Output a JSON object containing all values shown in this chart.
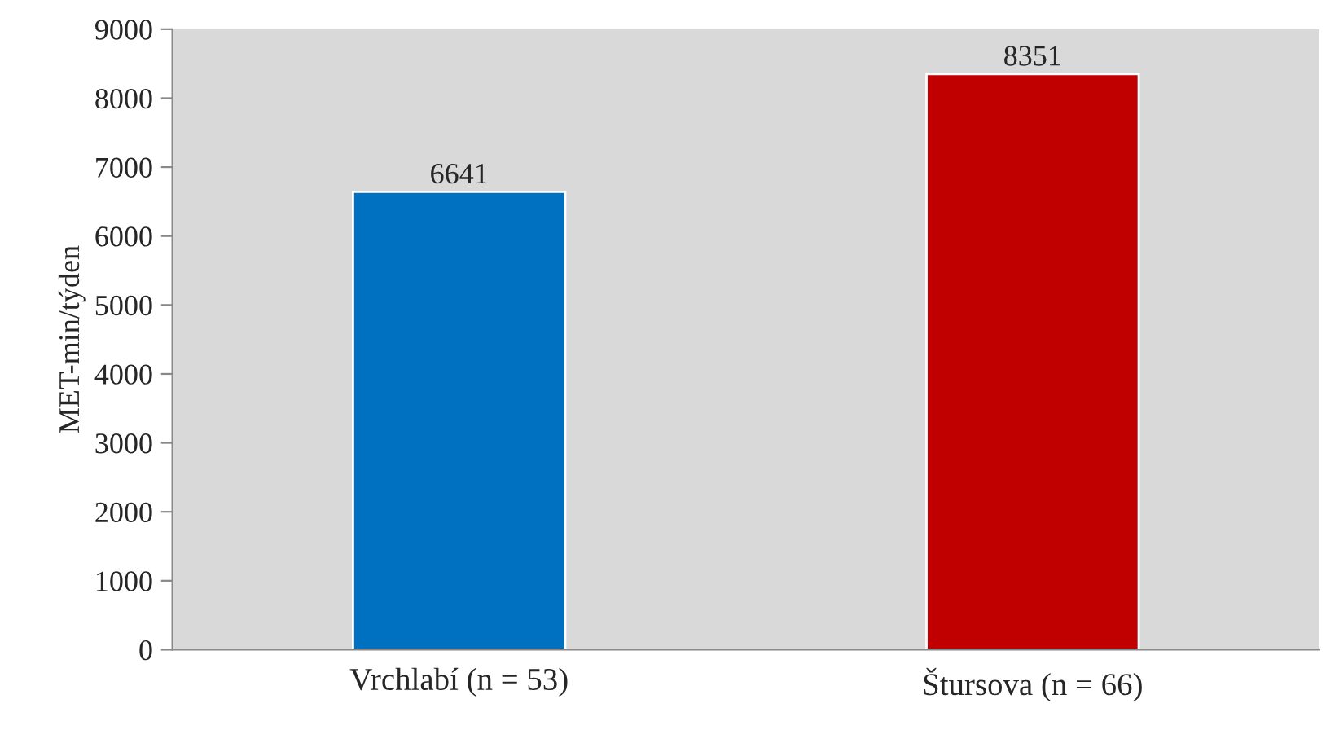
{
  "chart_data": {
    "type": "bar",
    "ylabel": "MET-min/týden",
    "categories": [
      "Vrchlabí (n = 53)",
      "Štursova (n = 66)"
    ],
    "values": [
      6641,
      8351
    ],
    "colors": [
      "#0070c0",
      "#c00000"
    ],
    "ylim": [
      0,
      9000
    ],
    "yticks": [
      0,
      1000,
      2000,
      3000,
      4000,
      5000,
      6000,
      7000,
      8000,
      9000
    ],
    "data_labels": true
  }
}
